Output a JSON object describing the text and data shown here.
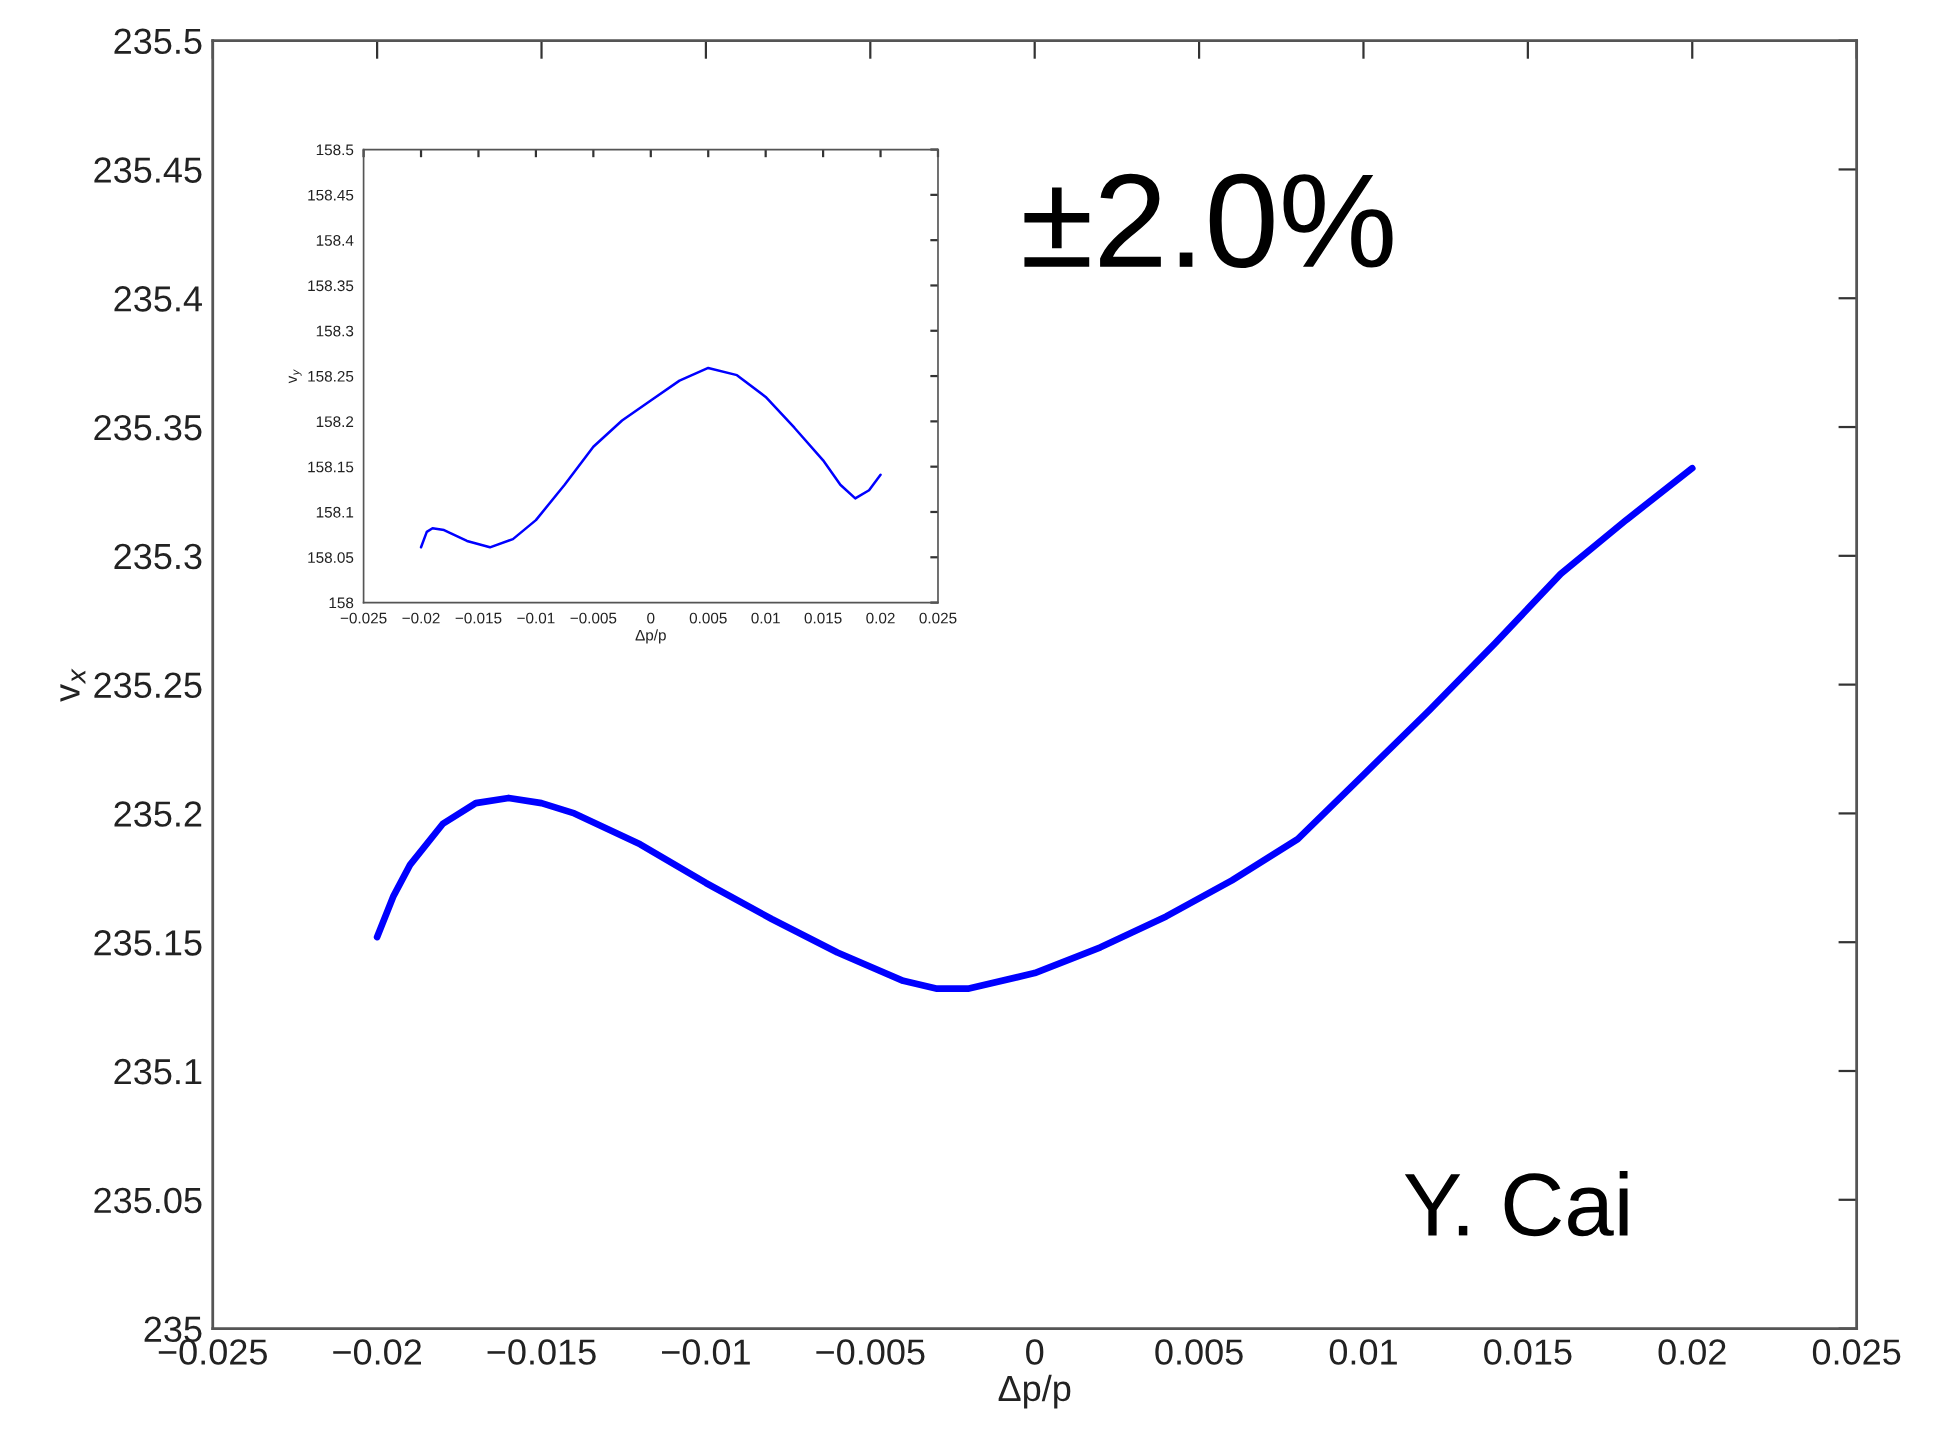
{
  "chart_data": [
    {
      "type": "line",
      "xlabel": "Δp/p",
      "ylabel": "v$_{x}$",
      "annotations": [
        "±2.0%",
        "Y. Cai"
      ],
      "x": [
        -0.02,
        -0.0195,
        -0.019,
        -0.018,
        -0.017,
        -0.016,
        -0.015,
        -0.014,
        -0.012,
        -0.01,
        -0.008,
        -0.006,
        -0.004,
        -0.003,
        -0.002,
        0,
        0.002,
        0.004,
        0.006,
        0.008,
        0.01,
        0.012,
        0.014,
        0.016,
        0.018,
        0.02
      ],
      "series": [
        {
          "color": "#0000ff",
          "values": [
            235.152,
            235.168,
            235.18,
            235.196,
            235.204,
            235.206,
            235.204,
            235.2,
            235.188,
            235.173,
            235.159,
            235.146,
            235.135,
            235.132,
            235.132,
            235.138,
            235.148,
            235.16,
            235.174,
            235.19,
            235.215,
            235.24,
            235.266,
            235.293,
            235.314,
            235.334
          ]
        }
      ],
      "xlim": [
        -0.025,
        0.025
      ],
      "xticks": [
        -0.025,
        -0.02,
        -0.015,
        -0.01,
        -0.005,
        0,
        0.005,
        0.01,
        0.015,
        0.02,
        0.025
      ],
      "ylim": [
        235,
        235.5
      ],
      "yticks": [
        235,
        235.05,
        235.1,
        235.15,
        235.2,
        235.25,
        235.3,
        235.35,
        235.4,
        235.45,
        235.5
      ],
      "grid": false
    },
    {
      "type": "line",
      "xlabel": "Δp/p",
      "ylabel": "v$_{y}$",
      "x": [
        -0.02,
        -0.0195,
        -0.019,
        -0.018,
        -0.016,
        -0.014,
        -0.012,
        -0.01,
        -0.0075,
        -0.005,
        -0.0025,
        0,
        0.0025,
        0.005,
        0.0075,
        0.01,
        0.0125,
        0.015,
        0.0165,
        0.0178,
        0.019,
        0.02
      ],
      "series": [
        {
          "color": "#0000ff",
          "values": [
            158.061,
            158.078,
            158.082,
            158.08,
            158.068,
            158.061,
            158.07,
            158.091,
            158.13,
            158.172,
            158.201,
            158.223,
            158.245,
            158.259,
            158.251,
            158.227,
            158.193,
            158.157,
            158.13,
            158.115,
            158.124,
            158.141
          ]
        }
      ],
      "xlim": [
        -0.025,
        0.025
      ],
      "xticks": [
        -0.025,
        -0.02,
        -0.015,
        -0.01,
        -0.005,
        0,
        0.005,
        0.01,
        0.015,
        0.02,
        0.025
      ],
      "ylim": [
        158,
        158.5
      ],
      "yticks": [
        158,
        158.05,
        158.1,
        158.15,
        158.2,
        158.25,
        158.3,
        158.35,
        158.4,
        158.45,
        158.5
      ],
      "grid": false
    }
  ]
}
